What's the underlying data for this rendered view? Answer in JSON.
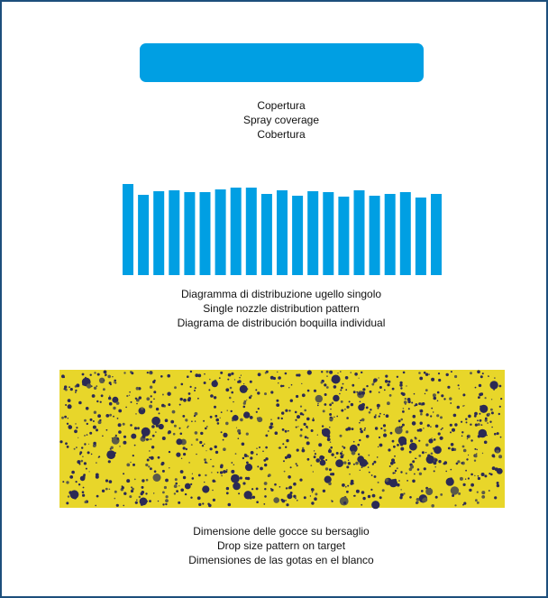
{
  "coverage": {
    "lines": [
      "Copertura",
      "Spray coverage",
      "Cobertura"
    ]
  },
  "chart_data": {
    "type": "bar",
    "color": "#009fe3",
    "values": [
      101,
      89,
      93,
      94,
      92,
      92,
      95,
      97,
      97,
      90,
      94,
      88,
      93,
      92,
      87,
      94,
      88,
      90,
      92,
      86,
      90
    ],
    "caption": [
      "Diagramma di distribuzione ugello singolo",
      "Single nozzle distribution pattern",
      "Diagrama de distribución boquilla individual"
    ]
  },
  "drops": {
    "lines": [
      "Dimensione delle gocce su bersaglio",
      "Drop size pattern on target",
      "Dimensiones de las gotas en el blanco"
    ]
  }
}
